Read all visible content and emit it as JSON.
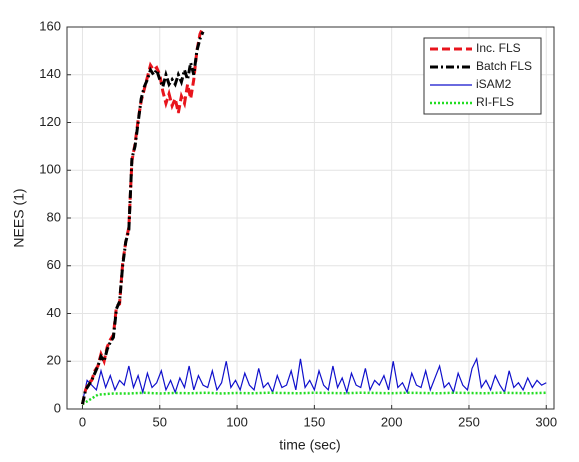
{
  "chart_data": {
    "type": "line",
    "xlabel": "time (sec)",
    "ylabel": "NEES (1)",
    "xlim": [
      -10,
      305
    ],
    "ylim": [
      0,
      160
    ],
    "xticks": [
      0,
      50,
      100,
      150,
      200,
      250,
      300
    ],
    "yticks": [
      0,
      20,
      40,
      60,
      80,
      100,
      120,
      140,
      160
    ],
    "grid": true,
    "legend": "top-right",
    "series": [
      {
        "name": "Inc. FLS",
        "color": "#e8141c",
        "style": "dashed",
        "x": [
          0,
          2,
          4,
          6,
          8,
          10,
          12,
          14,
          16,
          18,
          20,
          22,
          24,
          26,
          28,
          30,
          32,
          34,
          36,
          38,
          40,
          42,
          44,
          46,
          48,
          50,
          52,
          54,
          56,
          58,
          60,
          62,
          64,
          66,
          68,
          70,
          72,
          74,
          76,
          78
        ],
        "values": [
          2,
          8,
          11,
          12,
          16,
          18,
          23,
          20,
          26,
          29,
          31,
          43,
          44,
          61,
          70,
          76,
          104,
          111,
          121,
          129,
          134,
          139,
          144,
          142,
          143,
          140,
          133,
          128,
          132,
          127,
          130,
          124,
          131,
          128,
          136,
          130,
          138,
          150,
          157,
          160
        ]
      },
      {
        "name": "Batch FLS",
        "color": "#000000",
        "style": "dashdot",
        "x": [
          0,
          2,
          4,
          6,
          8,
          10,
          12,
          14,
          16,
          18,
          20,
          22,
          24,
          26,
          28,
          30,
          32,
          34,
          36,
          38,
          40,
          42,
          44,
          46,
          48,
          50,
          52,
          54,
          56,
          58,
          60,
          62,
          64,
          66,
          68,
          70,
          72,
          74,
          76,
          78
        ],
        "values": [
          2,
          8,
          10,
          12,
          15,
          18,
          22,
          20,
          25,
          28,
          30,
          42,
          45,
          60,
          70,
          75,
          105,
          110,
          120,
          130,
          135,
          138,
          142,
          140,
          142,
          138,
          135,
          140,
          136,
          138,
          136,
          140,
          137,
          142,
          138,
          145,
          140,
          150,
          155,
          158
        ]
      },
      {
        "name": "iSAM2",
        "color": "#1010cc",
        "style": "solid",
        "x": [
          0,
          3,
          6,
          9,
          12,
          15,
          18,
          21,
          24,
          27,
          30,
          33,
          36,
          39,
          42,
          45,
          48,
          51,
          54,
          57,
          60,
          63,
          66,
          69,
          72,
          75,
          78,
          81,
          84,
          87,
          90,
          93,
          96,
          99,
          102,
          105,
          108,
          111,
          114,
          117,
          120,
          123,
          126,
          129,
          132,
          135,
          138,
          141,
          144,
          147,
          150,
          153,
          156,
          159,
          162,
          165,
          168,
          171,
          174,
          177,
          180,
          183,
          186,
          189,
          192,
          195,
          198,
          201,
          204,
          207,
          210,
          213,
          216,
          219,
          222,
          225,
          228,
          231,
          234,
          237,
          240,
          243,
          246,
          249,
          252,
          255,
          258,
          261,
          264,
          267,
          270,
          273,
          276,
          279,
          282,
          285,
          288,
          291,
          294,
          297,
          300
        ],
        "values": [
          3,
          12,
          10,
          8,
          16,
          9,
          14,
          8,
          12,
          10,
          18,
          9,
          14,
          7,
          15,
          9,
          11,
          16,
          8,
          12,
          7,
          13,
          9,
          18,
          8,
          14,
          10,
          9,
          16,
          8,
          11,
          20,
          9,
          12,
          8,
          15,
          10,
          8,
          17,
          9,
          11,
          7,
          14,
          9,
          10,
          16,
          8,
          21,
          9,
          12,
          8,
          16,
          10,
          8,
          18,
          9,
          13,
          7,
          15,
          10,
          9,
          17,
          8,
          12,
          10,
          14,
          8,
          20,
          9,
          11,
          7,
          15,
          10,
          9,
          16,
          8,
          13,
          18,
          9,
          11,
          7,
          15,
          10,
          8,
          17,
          21,
          9,
          12,
          8,
          14,
          10,
          7,
          16,
          9,
          11,
          8,
          13,
          9,
          12,
          10,
          11
        ]
      },
      {
        "name": "RI-FLS",
        "color": "#22dd22",
        "style": "dotted",
        "x": [
          0,
          10,
          20,
          30,
          40,
          50,
          60,
          70,
          80,
          90,
          100,
          110,
          120,
          130,
          140,
          150,
          160,
          170,
          180,
          190,
          200,
          210,
          220,
          230,
          240,
          250,
          260,
          270,
          280,
          290,
          300
        ],
        "values": [
          2,
          6,
          6.5,
          6.5,
          6.8,
          6.5,
          6.7,
          6.6,
          6.8,
          6.5,
          6.7,
          6.6,
          6.8,
          6.7,
          6.6,
          6.8,
          6.7,
          6.6,
          6.8,
          6.7,
          6.6,
          6.8,
          6.7,
          6.6,
          6.8,
          6.7,
          6.6,
          6.8,
          6.7,
          6.6,
          6.8
        ]
      }
    ]
  }
}
